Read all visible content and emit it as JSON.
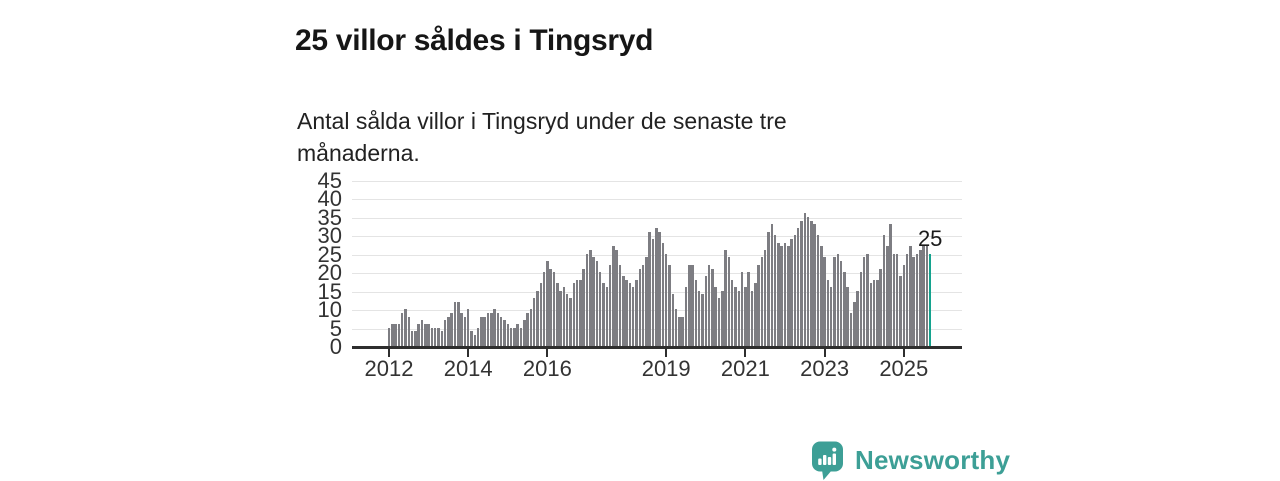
{
  "title": "25 villor såldes i Tingsryd",
  "subtitle_line1": "Antal sålda villor i Tingsryd under de senaste tre",
  "subtitle_line2": "månaderna.",
  "chart_data": {
    "type": "bar",
    "title": "25 villor såldes i Tingsryd",
    "xlabel": "",
    "ylabel": "",
    "ylim": [
      0,
      45
    ],
    "yticks": [
      0,
      5,
      10,
      15,
      20,
      25,
      30,
      35,
      40,
      45
    ],
    "grid": true,
    "x_unit": "month",
    "xticks": [
      {
        "label": "2012",
        "month_index": 0
      },
      {
        "label": "2014",
        "month_index": 24
      },
      {
        "label": "2016",
        "month_index": 48
      },
      {
        "label": "2019",
        "month_index": 84
      },
      {
        "label": "2021",
        "month_index": 108
      },
      {
        "label": "2023",
        "month_index": 132
      },
      {
        "label": "2025",
        "month_index": 156
      }
    ],
    "values": [
      5,
      6,
      6,
      6,
      9,
      10,
      8,
      4,
      4,
      6,
      7,
      6,
      6,
      5,
      5,
      5,
      4,
      7,
      8,
      9,
      12,
      12,
      9,
      8,
      10,
      4,
      3,
      5,
      8,
      8,
      9,
      9,
      10,
      9,
      8,
      7,
      6,
      5,
      5,
      6,
      5,
      7,
      9,
      10,
      13,
      15,
      17,
      20,
      23,
      21,
      20,
      17,
      15,
      16,
      14,
      13,
      17,
      18,
      18,
      21,
      25,
      26,
      24,
      23,
      20,
      17,
      16,
      22,
      27,
      26,
      22,
      19,
      18,
      17,
      16,
      18,
      21,
      22,
      24,
      31,
      29,
      32,
      31,
      28,
      25,
      22,
      14,
      10,
      8,
      8,
      16,
      22,
      22,
      18,
      15,
      14,
      19,
      22,
      21,
      16,
      13,
      15,
      26,
      24,
      18,
      16,
      15,
      20,
      16,
      20,
      15,
      17,
      22,
      24,
      26,
      31,
      33,
      30,
      28,
      27,
      28,
      27,
      29,
      30,
      32,
      34,
      36,
      35,
      34,
      33,
      30,
      27,
      24,
      18,
      16,
      24,
      25,
      23,
      20,
      16,
      9,
      12,
      15,
      20,
      24,
      25,
      17,
      18,
      18,
      21,
      30,
      27,
      33,
      25,
      25,
      19,
      22,
      25,
      27,
      24,
      25,
      26,
      27,
      27,
      25
    ],
    "bar_color": "#7d7d82",
    "highlight": {
      "index": 164,
      "value": 25,
      "label": "25",
      "color": "#14a38e"
    },
    "legend": null
  },
  "footer": {
    "brand": "Newsworthy",
    "logo_icon": "newsworthy-speech-bubble-chart-icon",
    "brand_color": "#3d9f96"
  }
}
